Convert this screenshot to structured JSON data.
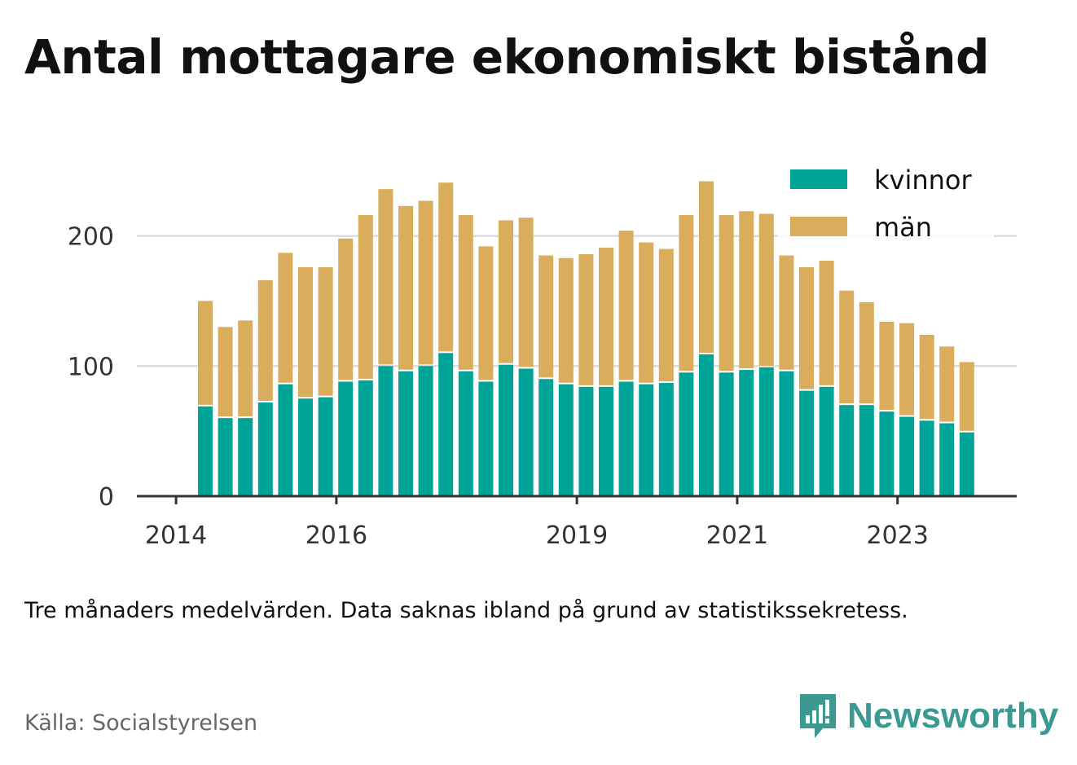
{
  "title": "Antal mottagare ekonomiskt bistånd",
  "caption": "Tre månaders medelvärden. Data saknas ibland på grund av statistikssekretess.",
  "source": "Källa: Socialstyrelsen",
  "brand": "Newsworthy",
  "colors": {
    "kvinnor": "#00a398",
    "man": "#d9ad5b",
    "grid": "#dddddd",
    "axis": "#333333",
    "brand": "#3a9a91"
  },
  "chart_data": {
    "type": "bar",
    "stacked": true,
    "y_ticks": [
      0,
      100,
      200
    ],
    "ylim": [
      0,
      240
    ],
    "x_tick_labels": [
      "2014",
      "2016",
      "2019",
      "2021",
      "2023"
    ],
    "x_tick_bar_index": [
      -1,
      7,
      19,
      27,
      35
    ],
    "legend": {
      "placement": "top-right"
    },
    "grid": true,
    "series": [
      {
        "name": "kvinnor",
        "values": [
          69,
          60,
          60,
          72,
          86,
          75,
          76,
          88,
          89,
          100,
          96,
          100,
          110,
          96,
          88,
          101,
          98,
          90,
          86,
          84,
          84,
          88,
          86,
          87,
          95,
          109,
          95,
          97,
          99,
          96,
          81,
          84,
          70,
          70,
          65,
          61,
          58,
          56,
          49
        ]
      },
      {
        "name": "män",
        "values": [
          81,
          70,
          75,
          94,
          101,
          101,
          100,
          110,
          127,
          136,
          127,
          127,
          131,
          120,
          104,
          111,
          116,
          95,
          97,
          102,
          107,
          116,
          109,
          103,
          121,
          133,
          121,
          122,
          118,
          89,
          95,
          97,
          88,
          79,
          69,
          72,
          66,
          59,
          54
        ]
      }
    ]
  }
}
